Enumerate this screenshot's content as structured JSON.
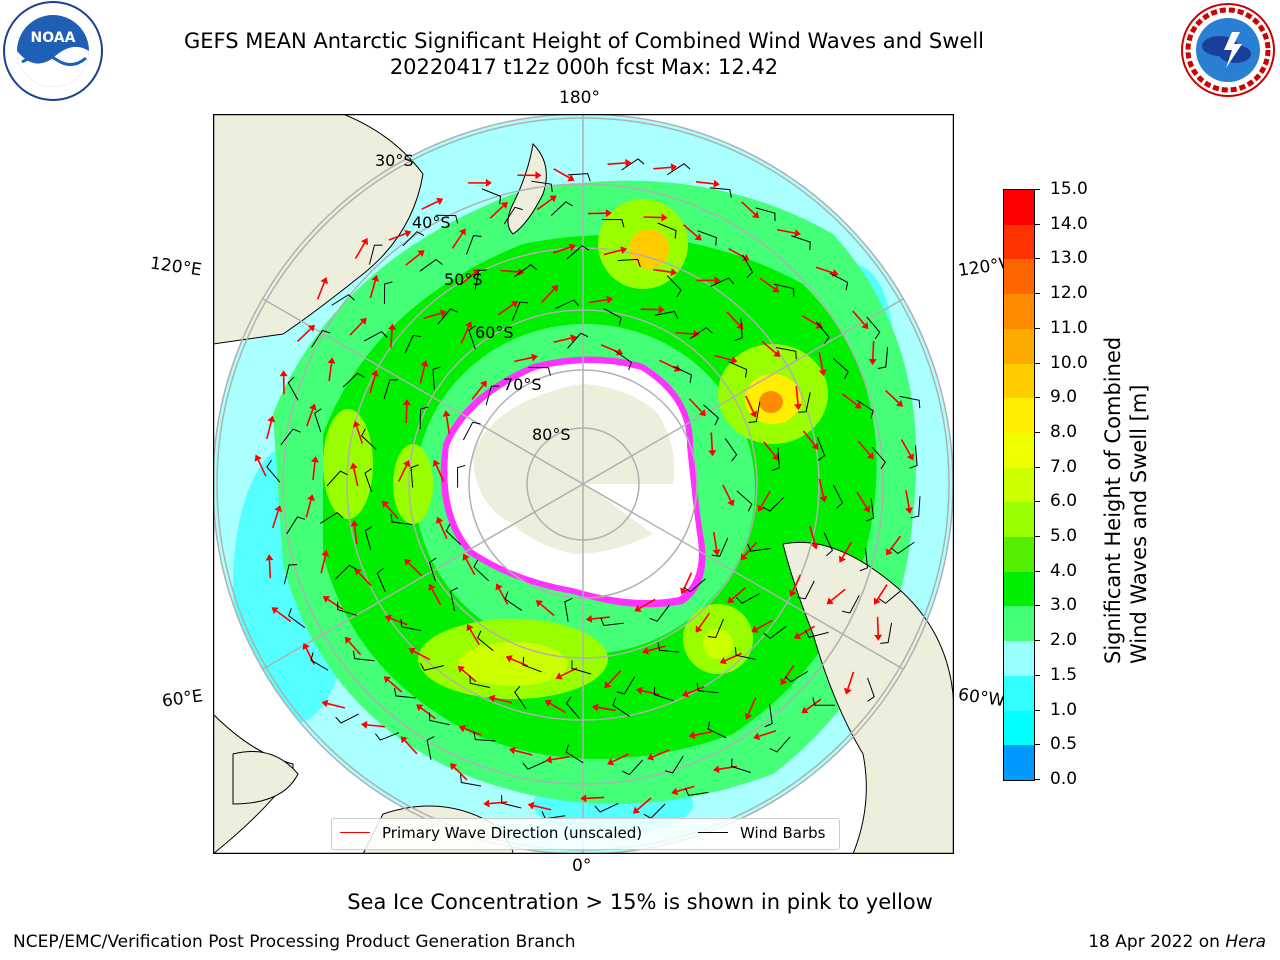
{
  "title": {
    "line1": "GEFS MEAN Antarctic Significant Height of Combined Wind Waves and Swell",
    "line2": "20220417 t12z 000h fcst   Max: 12.42"
  },
  "logos": {
    "left": {
      "text": "NOAA",
      "ring_text": "NATIONAL OCEANIC AND ATMOSPHERIC ADMINISTRATION · U.S. DEPARTMENT OF COMMERCE"
    },
    "right": {
      "ring_text": "NATIONAL WEATHER SERVICE"
    }
  },
  "map": {
    "lon_labels": {
      "top": "180°",
      "bottom": "0°",
      "upper_left": "120°E",
      "lower_left": "60°E",
      "upper_right": "120°W",
      "lower_right": "60°W"
    },
    "lat_labels": [
      "30°S",
      "40°S",
      "50°S",
      "60°S",
      "70°S",
      "80°S"
    ],
    "colors": {
      "ocean_low": "#aaffff",
      "land": "#eeeedd",
      "ice": "#ffffff",
      "ice_edge": "#ff33ff",
      "arrow": "#ff0000"
    }
  },
  "legend": {
    "wave_label": "Primary Wave Direction (unscaled)",
    "barb_label": "Wind Barbs"
  },
  "colorbar": {
    "title_line1": "Significant Height of Combined",
    "title_line2": "Wind Waves and Swell [m]",
    "ticks": [
      "15.0",
      "14.0",
      "13.0",
      "12.0",
      "11.0",
      "10.0",
      "9.0",
      "8.0",
      "7.0",
      "6.0",
      "5.0",
      "4.0",
      "3.0",
      "2.0",
      "1.5",
      "1.0",
      "0.5",
      "0.0"
    ],
    "colors": [
      "#ff0000",
      "#ff3300",
      "#ff6600",
      "#ff8c00",
      "#ffaa00",
      "#ffcc00",
      "#ffee00",
      "#eeff00",
      "#ccff00",
      "#99ff00",
      "#55ee00",
      "#00ee00",
      "#44ff77",
      "#99ffff",
      "#33ffff",
      "#00ffff",
      "#0099ff",
      "#0055ff",
      "#0000ff"
    ]
  },
  "notes": {
    "sea_ice": "Sea Ice Concentration > 15% is shown in pink to yellow"
  },
  "footer": {
    "left": "NCEP/EMC/Verification Post Processing Product Generation Branch",
    "right_date": "18 Apr 2022 on ",
    "right_host": "Hera"
  }
}
